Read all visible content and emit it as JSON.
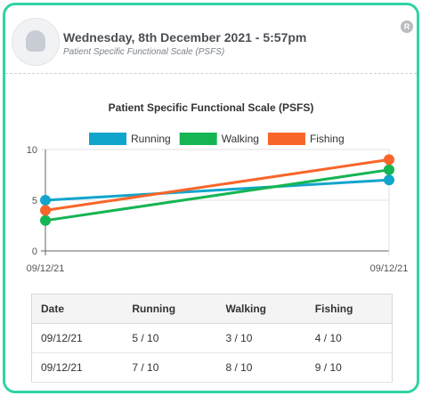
{
  "header": {
    "title": "Wednesday, 8th December 2021 - 5:57pm",
    "subtitle": "Patient Specific Functional Scale (PSFS)",
    "corner_icon": "R"
  },
  "chart_data": {
    "type": "line",
    "title": "Patient Specific Functional Scale (PSFS)",
    "categories": [
      "09/12/21",
      "09/12/21"
    ],
    "series": [
      {
        "name": "Running",
        "values": [
          5,
          7
        ],
        "color": "#12a5cc"
      },
      {
        "name": "Walking",
        "values": [
          3,
          8
        ],
        "color": "#15b553"
      },
      {
        "name": "Fishing",
        "values": [
          4,
          9
        ],
        "color": "#f8652a"
      }
    ],
    "y_ticks": [
      "0",
      "5",
      "10"
    ],
    "ylim": [
      0,
      10
    ],
    "legend_position": "top-center"
  },
  "table": {
    "headers": [
      "Date",
      "Running",
      "Walking",
      "Fishing"
    ],
    "rows": [
      [
        "09/12/21",
        "5 / 10",
        "3 / 10",
        "4 / 10"
      ],
      [
        "09/12/21",
        "7 / 10",
        "8 / 10",
        "9 / 10"
      ]
    ]
  }
}
